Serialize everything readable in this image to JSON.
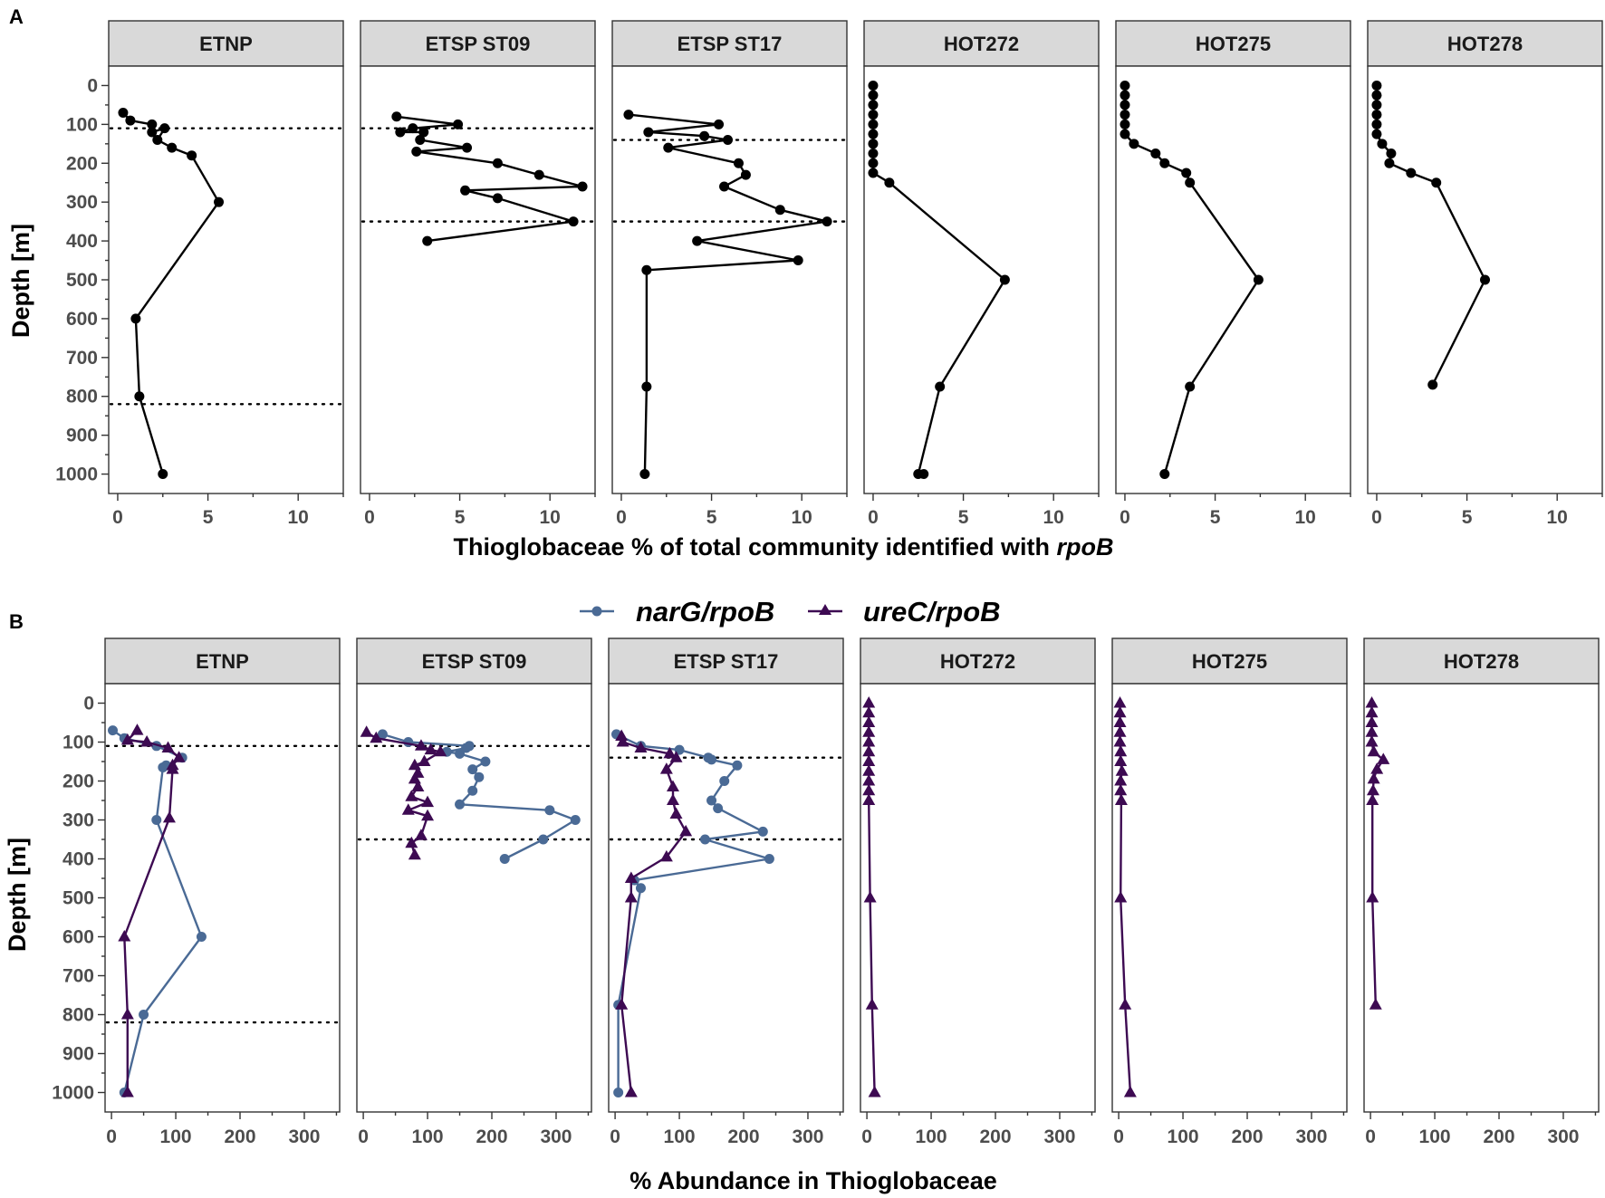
{
  "figure": {
    "panel_a_letter": "A",
    "panel_b_letter": "B",
    "y_axis_title": "Depth [m]",
    "a_x_title_prefix": "Thioglobaceae % of total community identified with ",
    "a_x_title_italic": "rpoB",
    "b_x_title": "% Abundance in Thioglobaceae"
  },
  "legend": [
    {
      "label": "narG/rpoB",
      "marker": "circle",
      "color": "#4a6a95"
    },
    {
      "label": "ureC/rpoB",
      "marker": "triangle",
      "color": "#3d0a52"
    }
  ],
  "chart_data": [
    {
      "type": "line",
      "panel": "A",
      "title": "",
      "xlabel": "Thioglobaceae % of total community identified with rpoB",
      "ylabel": "Depth [m]",
      "xlim": [
        -0.5,
        12.5
      ],
      "ylim": [
        1050,
        -50
      ],
      "x_ticks": [
        0,
        5,
        10
      ],
      "y_ticks": [
        0,
        100,
        200,
        300,
        400,
        500,
        600,
        700,
        800,
        900,
        1000
      ],
      "y_reversed": true,
      "color": "#000000",
      "facets": [
        {
          "label": "ETNP",
          "oxycline": [
            110,
            820
          ],
          "points": [
            [
              0.3,
              70
            ],
            [
              0.7,
              90
            ],
            [
              1.9,
              100
            ],
            [
              1.9,
              120
            ],
            [
              2.6,
              110
            ],
            [
              2.2,
              140
            ],
            [
              3.0,
              160
            ],
            [
              4.1,
              180
            ],
            [
              5.6,
              300
            ],
            [
              1.0,
              600
            ],
            [
              1.2,
              800
            ],
            [
              2.5,
              1000
            ]
          ]
        },
        {
          "label": "ETSP ST09",
          "oxycline": [
            110,
            350
          ],
          "points": [
            [
              1.5,
              80
            ],
            [
              4.9,
              100
            ],
            [
              2.4,
              110
            ],
            [
              1.7,
              120
            ],
            [
              3.0,
              120
            ],
            [
              2.8,
              140
            ],
            [
              5.4,
              160
            ],
            [
              2.6,
              170
            ],
            [
              7.1,
              200
            ],
            [
              9.4,
              230
            ],
            [
              11.8,
              260
            ],
            [
              5.3,
              270
            ],
            [
              7.1,
              290
            ],
            [
              11.3,
              350
            ],
            [
              3.2,
              400
            ]
          ]
        },
        {
          "label": "ETSP ST17",
          "oxycline": [
            140,
            350
          ],
          "points": [
            [
              0.4,
              75
            ],
            [
              5.4,
              100
            ],
            [
              1.5,
              120
            ],
            [
              4.6,
              130
            ],
            [
              5.9,
              140
            ],
            [
              2.6,
              160
            ],
            [
              6.5,
              200
            ],
            [
              6.9,
              230
            ],
            [
              5.7,
              260
            ],
            [
              8.8,
              320
            ],
            [
              11.4,
              350
            ],
            [
              4.2,
              400
            ],
            [
              9.8,
              450
            ],
            [
              1.4,
              475
            ],
            [
              1.4,
              775
            ],
            [
              1.3,
              1000
            ]
          ]
        },
        {
          "label": "HOT272",
          "oxycline": [],
          "points": [
            [
              0,
              0
            ],
            [
              0,
              25
            ],
            [
              0,
              50
            ],
            [
              0,
              75
            ],
            [
              0,
              100
            ],
            [
              0,
              125
            ],
            [
              0,
              150
            ],
            [
              0,
              175
            ],
            [
              0,
              200
            ],
            [
              0,
              225
            ],
            [
              0.9,
              250
            ],
            [
              7.3,
              500
            ],
            [
              3.7,
              775
            ],
            [
              2.5,
              1000
            ],
            [
              2.8,
              1000
            ]
          ]
        },
        {
          "label": "HOT275",
          "oxycline": [],
          "points": [
            [
              0,
              0
            ],
            [
              0,
              25
            ],
            [
              0,
              50
            ],
            [
              0,
              75
            ],
            [
              0,
              100
            ],
            [
              0,
              125
            ],
            [
              0.5,
              150
            ],
            [
              1.7,
              175
            ],
            [
              2.2,
              200
            ],
            [
              3.4,
              225
            ],
            [
              3.6,
              250
            ],
            [
              7.4,
              500
            ],
            [
              3.6,
              775
            ],
            [
              2.2,
              1000
            ]
          ]
        },
        {
          "label": "HOT278",
          "oxycline": [],
          "points": [
            [
              0,
              0
            ],
            [
              0,
              25
            ],
            [
              0,
              50
            ],
            [
              0,
              75
            ],
            [
              0,
              100
            ],
            [
              0,
              125
            ],
            [
              0.3,
              150
            ],
            [
              0.8,
              175
            ],
            [
              0.7,
              200
            ],
            [
              1.9,
              225
            ],
            [
              3.3,
              250
            ],
            [
              6.0,
              500
            ],
            [
              3.1,
              770
            ]
          ]
        }
      ]
    },
    {
      "type": "line",
      "panel": "B",
      "title": "",
      "xlabel": "% Abundance in Thioglobaceae",
      "ylabel": "Depth [m]",
      "xlim": [
        -10,
        355
      ],
      "ylim": [
        1050,
        -50
      ],
      "x_ticks": [
        0,
        100,
        200,
        300
      ],
      "y_ticks": [
        0,
        100,
        200,
        300,
        400,
        500,
        600,
        700,
        800,
        900,
        1000
      ],
      "y_reversed": true,
      "series_names": [
        "narG/rpoB",
        "ureC/rpoB"
      ],
      "facets": [
        {
          "label": "ETNP",
          "oxycline": [
            110,
            820
          ],
          "series": [
            {
              "name": "narG/rpoB",
              "points": [
                [
                  2,
                  70
                ],
                [
                  20,
                  90
                ],
                [
                  70,
                  110
                ],
                [
                  110,
                  140
                ],
                [
                  85,
                  160
                ],
                [
                  80,
                  165
                ],
                [
                  70,
                  300
                ],
                [
                  140,
                  600
                ],
                [
                  50,
                  800
                ],
                [
                  20,
                  1000
                ]
              ]
            },
            {
              "name": "ureC/rpoB",
              "points": [
                [
                  40,
                  70
                ],
                [
                  25,
                  95
                ],
                [
                  55,
                  100
                ],
                [
                  88,
                  115
                ],
                [
                  105,
                  140
                ],
                [
                  95,
                  160
                ],
                [
                  95,
                  170
                ],
                [
                  90,
                  295
                ],
                [
                  20,
                  600
                ],
                [
                  25,
                  800
                ],
                [
                  25,
                  1000
                ]
              ]
            }
          ]
        },
        {
          "label": "ETSP ST09",
          "oxycline": [
            110,
            350
          ],
          "series": [
            {
              "name": "narG/rpoB",
              "points": [
                [
                  30,
                  80
                ],
                [
                  70,
                  100
                ],
                [
                  165,
                  110
                ],
                [
                  160,
                  115
                ],
                [
                  130,
                  125
                ],
                [
                  150,
                  130
                ],
                [
                  190,
                  150
                ],
                [
                  170,
                  170
                ],
                [
                  180,
                  190
                ],
                [
                  170,
                  225
                ],
                [
                  150,
                  260
                ],
                [
                  290,
                  275
                ],
                [
                  330,
                  300
                ],
                [
                  280,
                  350
                ],
                [
                  220,
                  400
                ]
              ]
            },
            {
              "name": "ureC/rpoB",
              "points": [
                [
                  5,
                  75
                ],
                [
                  20,
                  90
                ],
                [
                  90,
                  110
                ],
                [
                  105,
                  120
                ],
                [
                  120,
                  125
                ],
                [
                  95,
                  150
                ],
                [
                  80,
                  160
                ],
                [
                  85,
                  180
                ],
                [
                  80,
                  195
                ],
                [
                  85,
                  215
                ],
                [
                  75,
                  240
                ],
                [
                  100,
                  255
                ],
                [
                  70,
                  275
                ],
                [
                  100,
                  290
                ],
                [
                  90,
                  340
                ],
                [
                  75,
                  360
                ],
                [
                  80,
                  390
                ]
              ]
            }
          ]
        },
        {
          "label": "ETSP ST17",
          "oxycline": [
            140,
            350
          ],
          "series": [
            {
              "name": "narG/rpoB",
              "points": [
                [
                  2,
                  80
                ],
                [
                  40,
                  110
                ],
                [
                  100,
                  120
                ],
                [
                  145,
                  140
                ],
                [
                  150,
                  145
                ],
                [
                  190,
                  160
                ],
                [
                  170,
                  200
                ],
                [
                  150,
                  250
                ],
                [
                  160,
                  270
                ],
                [
                  230,
                  330
                ],
                [
                  140,
                  350
                ],
                [
                  240,
                  400
                ],
                [
                  30,
                  455
                ],
                [
                  40,
                  475
                ],
                [
                  5,
                  775
                ],
                [
                  5,
                  1000
                ]
              ]
            },
            {
              "name": "ureC/rpoB",
              "points": [
                [
                  10,
                  85
                ],
                [
                  12,
                  100
                ],
                [
                  40,
                  115
                ],
                [
                  85,
                  130
                ],
                [
                  95,
                  140
                ],
                [
                  80,
                  170
                ],
                [
                  90,
                  215
                ],
                [
                  90,
                  250
                ],
                [
                  95,
                  285
                ],
                [
                  110,
                  330
                ],
                [
                  80,
                  395
                ],
                [
                  25,
                  450
                ],
                [
                  25,
                  500
                ],
                [
                  10,
                  775
                ],
                [
                  25,
                  1000
                ]
              ]
            }
          ]
        },
        {
          "label": "HOT272",
          "oxycline": [],
          "series": [
            {
              "name": "ureC/rpoB",
              "points": [
                [
                  3,
                  0
                ],
                [
                  3,
                  25
                ],
                [
                  3,
                  50
                ],
                [
                  3,
                  75
                ],
                [
                  3,
                  100
                ],
                [
                  3,
                  125
                ],
                [
                  3,
                  150
                ],
                [
                  3,
                  175
                ],
                [
                  3,
                  200
                ],
                [
                  3,
                  225
                ],
                [
                  3,
                  250
                ],
                [
                  5,
                  500
                ],
                [
                  8,
                  775
                ],
                [
                  12,
                  1000
                ]
              ]
            }
          ]
        },
        {
          "label": "HOT275",
          "oxycline": [],
          "series": [
            {
              "name": "ureC/rpoB",
              "points": [
                [
                  2,
                  0
                ],
                [
                  2,
                  25
                ],
                [
                  2,
                  50
                ],
                [
                  2,
                  75
                ],
                [
                  2,
                  100
                ],
                [
                  3,
                  125
                ],
                [
                  3,
                  150
                ],
                [
                  5,
                  175
                ],
                [
                  3,
                  200
                ],
                [
                  3,
                  225
                ],
                [
                  4,
                  250
                ],
                [
                  3,
                  500
                ],
                [
                  10,
                  775
                ],
                [
                  18,
                  1000
                ]
              ]
            }
          ]
        },
        {
          "label": "HOT278",
          "oxycline": [],
          "series": [
            {
              "name": "ureC/rpoB",
              "points": [
                [
                  2,
                  0
                ],
                [
                  2,
                  25
                ],
                [
                  2,
                  50
                ],
                [
                  2,
                  75
                ],
                [
                  2,
                  100
                ],
                [
                  5,
                  125
                ],
                [
                  20,
                  145
                ],
                [
                  10,
                  170
                ],
                [
                  5,
                  195
                ],
                [
                  4,
                  225
                ],
                [
                  3,
                  250
                ],
                [
                  3,
                  500
                ],
                [
                  8,
                  775
                ]
              ]
            }
          ]
        }
      ]
    }
  ]
}
